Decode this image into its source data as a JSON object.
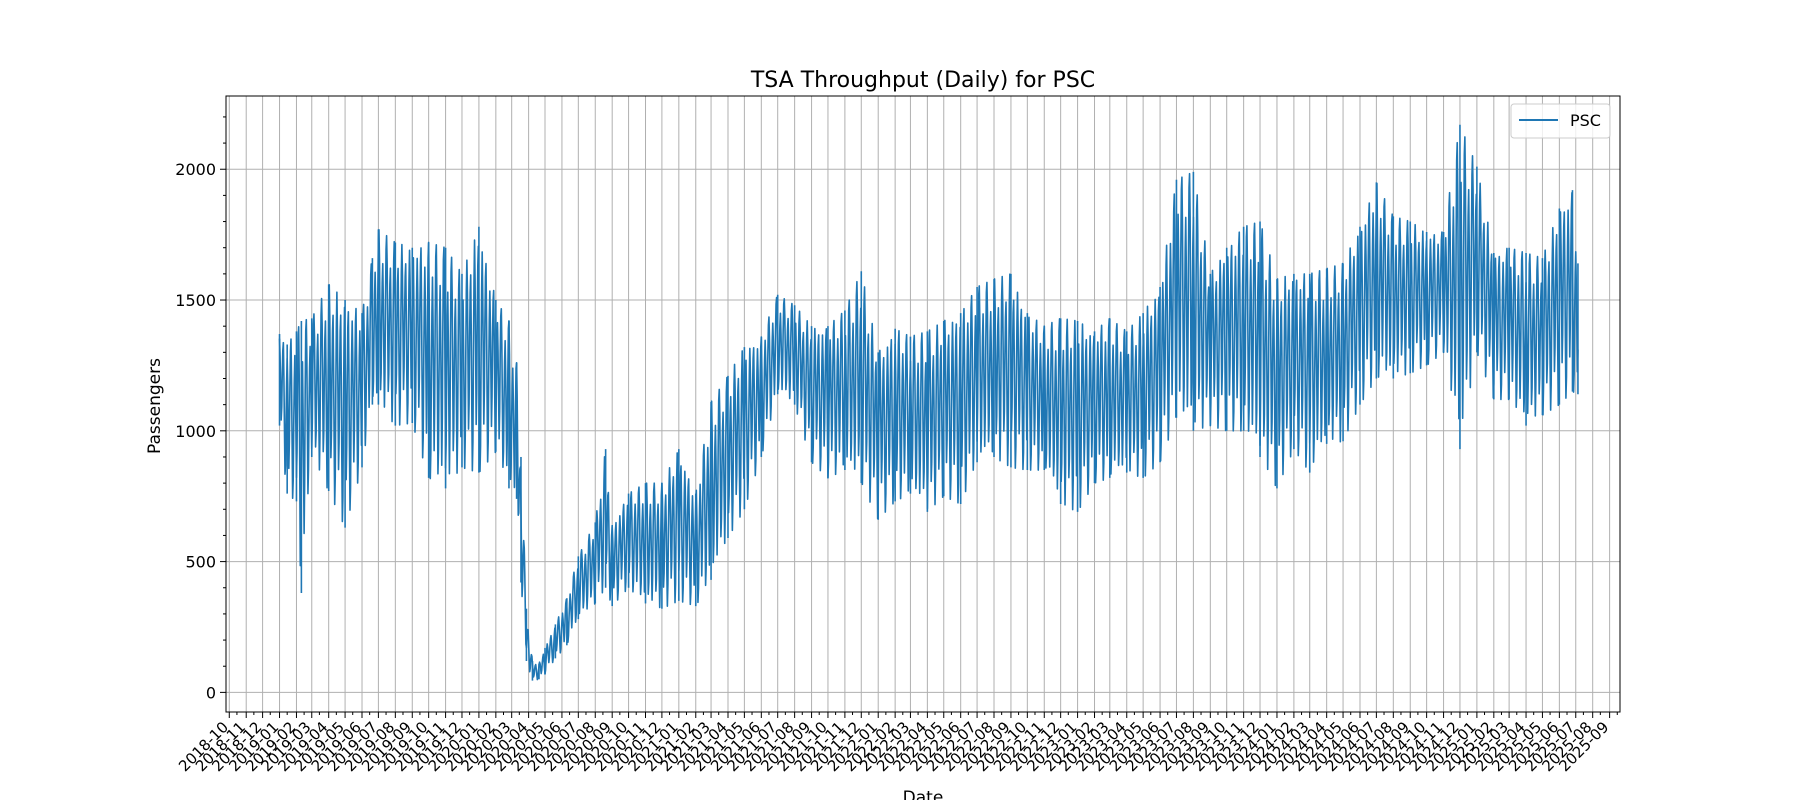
{
  "chart_data": {
    "type": "line",
    "title": "TSA Throughput (Daily) for PSC",
    "xlabel": "Date",
    "ylabel": "Passengers",
    "x_axis_type": "date",
    "xlim": [
      "2018-09-25",
      "2025-09-20"
    ],
    "ylim": [
      -75,
      2280
    ],
    "yticks": [
      0,
      500,
      1000,
      1500,
      2000
    ],
    "xtick_labels": [
      "2018-10",
      "2018-11",
      "2018-12",
      "2019-01",
      "2019-02",
      "2019-03",
      "2019-04",
      "2019-05",
      "2019-06",
      "2019-07",
      "2019-08",
      "2019-09",
      "2019-10",
      "2019-11",
      "2019-12",
      "2020-01",
      "2020-02",
      "2020-03",
      "2020-04",
      "2020-05",
      "2020-06",
      "2020-07",
      "2020-08",
      "2020-09",
      "2020-10",
      "2020-11",
      "2020-12",
      "2021-01",
      "2021-02",
      "2021-03",
      "2021-04",
      "2021-05",
      "2021-06",
      "2021-07",
      "2021-08",
      "2021-09",
      "2021-10",
      "2021-11",
      "2021-12",
      "2022-01",
      "2022-02",
      "2022-03",
      "2022-04",
      "2022-05",
      "2022-06",
      "2022-07",
      "2022-08",
      "2022-09",
      "2022-10",
      "2022-11",
      "2022-12",
      "2023-01",
      "2023-02",
      "2023-03",
      "2023-04",
      "2023-05",
      "2023-06",
      "2023-07",
      "2023-08",
      "2023-09",
      "2023-10",
      "2023-11",
      "2023-12",
      "2024-01",
      "2024-02",
      "2024-03",
      "2024-04",
      "2024-05",
      "2024-06",
      "2024-07",
      "2024-08",
      "2024-09",
      "2024-10",
      "2024-11",
      "2024-12",
      "2025-01",
      "2025-02",
      "2025-03",
      "2025-04",
      "2025-05",
      "2025-06",
      "2025-07",
      "2025-08",
      "2025-09"
    ],
    "grid": true,
    "legend_position": "top-right",
    "series": [
      {
        "name": "PSC",
        "color": "#1f77b4",
        "points": [
          {
            "date": "2019-01-01",
            "low": 1020,
            "high": 1370
          },
          {
            "date": "2019-01-15",
            "low": 760,
            "high": 1330
          },
          {
            "date": "2019-02-01",
            "low": 730,
            "high": 1380
          },
          {
            "date": "2019-02-10",
            "low": 380,
            "high": 1420
          },
          {
            "date": "2019-03-01",
            "low": 900,
            "high": 1430
          },
          {
            "date": "2019-04-01",
            "low": 770,
            "high": 1560
          },
          {
            "date": "2019-05-01",
            "low": 630,
            "high": 1500
          },
          {
            "date": "2019-06-01",
            "low": 860,
            "high": 1450
          },
          {
            "date": "2019-06-20",
            "low": 1100,
            "high": 1660
          },
          {
            "date": "2019-07-01",
            "low": 1100,
            "high": 1770
          },
          {
            "date": "2019-08-01",
            "low": 1020,
            "high": 1720
          },
          {
            "date": "2019-09-01",
            "low": 1030,
            "high": 1700
          },
          {
            "date": "2019-10-01",
            "low": 820,
            "high": 1720
          },
          {
            "date": "2019-11-01",
            "low": 780,
            "high": 1700
          },
          {
            "date": "2019-12-01",
            "low": 860,
            "high": 1600
          },
          {
            "date": "2020-01-01",
            "low": 840,
            "high": 1780
          },
          {
            "date": "2020-02-01",
            "low": 920,
            "high": 1500
          },
          {
            "date": "2020-02-25",
            "low": 780,
            "high": 1420
          },
          {
            "date": "2020-03-10",
            "low": 740,
            "high": 1260
          },
          {
            "date": "2020-03-18",
            "low": 420,
            "high": 900
          },
          {
            "date": "2020-03-28",
            "low": 120,
            "high": 320
          },
          {
            "date": "2020-04-08",
            "low": 45,
            "high": 120
          },
          {
            "date": "2020-04-20",
            "low": 50,
            "high": 110
          },
          {
            "date": "2020-05-01",
            "low": 70,
            "high": 170
          },
          {
            "date": "2020-05-20",
            "low": 130,
            "high": 260
          },
          {
            "date": "2020-06-10",
            "low": 180,
            "high": 360
          },
          {
            "date": "2020-07-01",
            "low": 280,
            "high": 520
          },
          {
            "date": "2020-08-01",
            "low": 340,
            "high": 650
          },
          {
            "date": "2020-08-20",
            "low": 400,
            "high": 930
          },
          {
            "date": "2020-09-01",
            "low": 330,
            "high": 640
          },
          {
            "date": "2020-10-01",
            "low": 400,
            "high": 760
          },
          {
            "date": "2020-11-01",
            "low": 340,
            "high": 800
          },
          {
            "date": "2020-12-01",
            "low": 320,
            "high": 800
          },
          {
            "date": "2021-01-01",
            "low": 350,
            "high": 930
          },
          {
            "date": "2021-02-01",
            "low": 330,
            "high": 760
          },
          {
            "date": "2021-03-01",
            "low": 430,
            "high": 1110
          },
          {
            "date": "2021-04-01",
            "low": 590,
            "high": 1210
          },
          {
            "date": "2021-05-01",
            "low": 700,
            "high": 1320
          },
          {
            "date": "2021-06-01",
            "low": 900,
            "high": 1360
          },
          {
            "date": "2021-07-01",
            "low": 1140,
            "high": 1520
          },
          {
            "date": "2021-08-01",
            "low": 1100,
            "high": 1480
          },
          {
            "date": "2021-09-01",
            "low": 880,
            "high": 1400
          },
          {
            "date": "2021-10-01",
            "low": 820,
            "high": 1400
          },
          {
            "date": "2021-11-01",
            "low": 850,
            "high": 1460
          },
          {
            "date": "2021-12-01",
            "low": 800,
            "high": 1610
          },
          {
            "date": "2022-01-01",
            "low": 660,
            "high": 1300
          },
          {
            "date": "2022-02-01",
            "low": 730,
            "high": 1390
          },
          {
            "date": "2022-03-01",
            "low": 760,
            "high": 1360
          },
          {
            "date": "2022-04-01",
            "low": 690,
            "high": 1380
          },
          {
            "date": "2022-05-01",
            "low": 750,
            "high": 1420
          },
          {
            "date": "2022-06-01",
            "low": 720,
            "high": 1450
          },
          {
            "date": "2022-07-01",
            "low": 880,
            "high": 1550
          },
          {
            "date": "2022-08-01",
            "low": 900,
            "high": 1580
          },
          {
            "date": "2022-09-01",
            "low": 860,
            "high": 1600
          },
          {
            "date": "2022-10-01",
            "low": 850,
            "high": 1450
          },
          {
            "date": "2022-11-01",
            "low": 850,
            "high": 1400
          },
          {
            "date": "2022-12-01",
            "low": 720,
            "high": 1430
          },
          {
            "date": "2023-01-01",
            "low": 690,
            "high": 1420
          },
          {
            "date": "2023-02-01",
            "low": 800,
            "high": 1380
          },
          {
            "date": "2023-03-01",
            "low": 820,
            "high": 1430
          },
          {
            "date": "2023-04-01",
            "low": 840,
            "high": 1380
          },
          {
            "date": "2023-05-01",
            "low": 820,
            "high": 1450
          },
          {
            "date": "2023-06-01",
            "low": 880,
            "high": 1550
          },
          {
            "date": "2023-07-01",
            "low": 1050,
            "high": 1960
          },
          {
            "date": "2023-08-01",
            "low": 1000,
            "high": 1990
          },
          {
            "date": "2023-09-01",
            "low": 1020,
            "high": 1600
          },
          {
            "date": "2023-10-01",
            "low": 1000,
            "high": 1700
          },
          {
            "date": "2023-11-01",
            "low": 1000,
            "high": 1780
          },
          {
            "date": "2023-12-01",
            "low": 900,
            "high": 1800
          },
          {
            "date": "2024-01-01",
            "low": 780,
            "high": 1580
          },
          {
            "date": "2024-02-01",
            "low": 930,
            "high": 1600
          },
          {
            "date": "2024-03-01",
            "low": 840,
            "high": 1600
          },
          {
            "date": "2024-04-01",
            "low": 950,
            "high": 1620
          },
          {
            "date": "2024-05-01",
            "low": 960,
            "high": 1640
          },
          {
            "date": "2024-06-01",
            "low": 1100,
            "high": 1780
          },
          {
            "date": "2024-07-01",
            "low": 1200,
            "high": 1950
          },
          {
            "date": "2024-08-01",
            "low": 1200,
            "high": 1820
          },
          {
            "date": "2024-09-01",
            "low": 1220,
            "high": 1800
          },
          {
            "date": "2024-10-01",
            "low": 1250,
            "high": 1760
          },
          {
            "date": "2024-11-01",
            "low": 1300,
            "high": 1760
          },
          {
            "date": "2024-12-01",
            "low": 930,
            "high": 2170
          },
          {
            "date": "2025-01-01",
            "low": 1300,
            "high": 2010
          },
          {
            "date": "2025-02-01",
            "low": 1120,
            "high": 1680
          },
          {
            "date": "2025-03-01",
            "low": 1120,
            "high": 1700
          },
          {
            "date": "2025-04-01",
            "low": 1020,
            "high": 1680
          },
          {
            "date": "2025-05-01",
            "low": 1060,
            "high": 1660
          },
          {
            "date": "2025-06-01",
            "low": 1100,
            "high": 1850
          },
          {
            "date": "2025-06-25",
            "low": 1150,
            "high": 1920
          },
          {
            "date": "2025-07-05",
            "low": 1140,
            "high": 1640
          }
        ]
      }
    ]
  }
}
